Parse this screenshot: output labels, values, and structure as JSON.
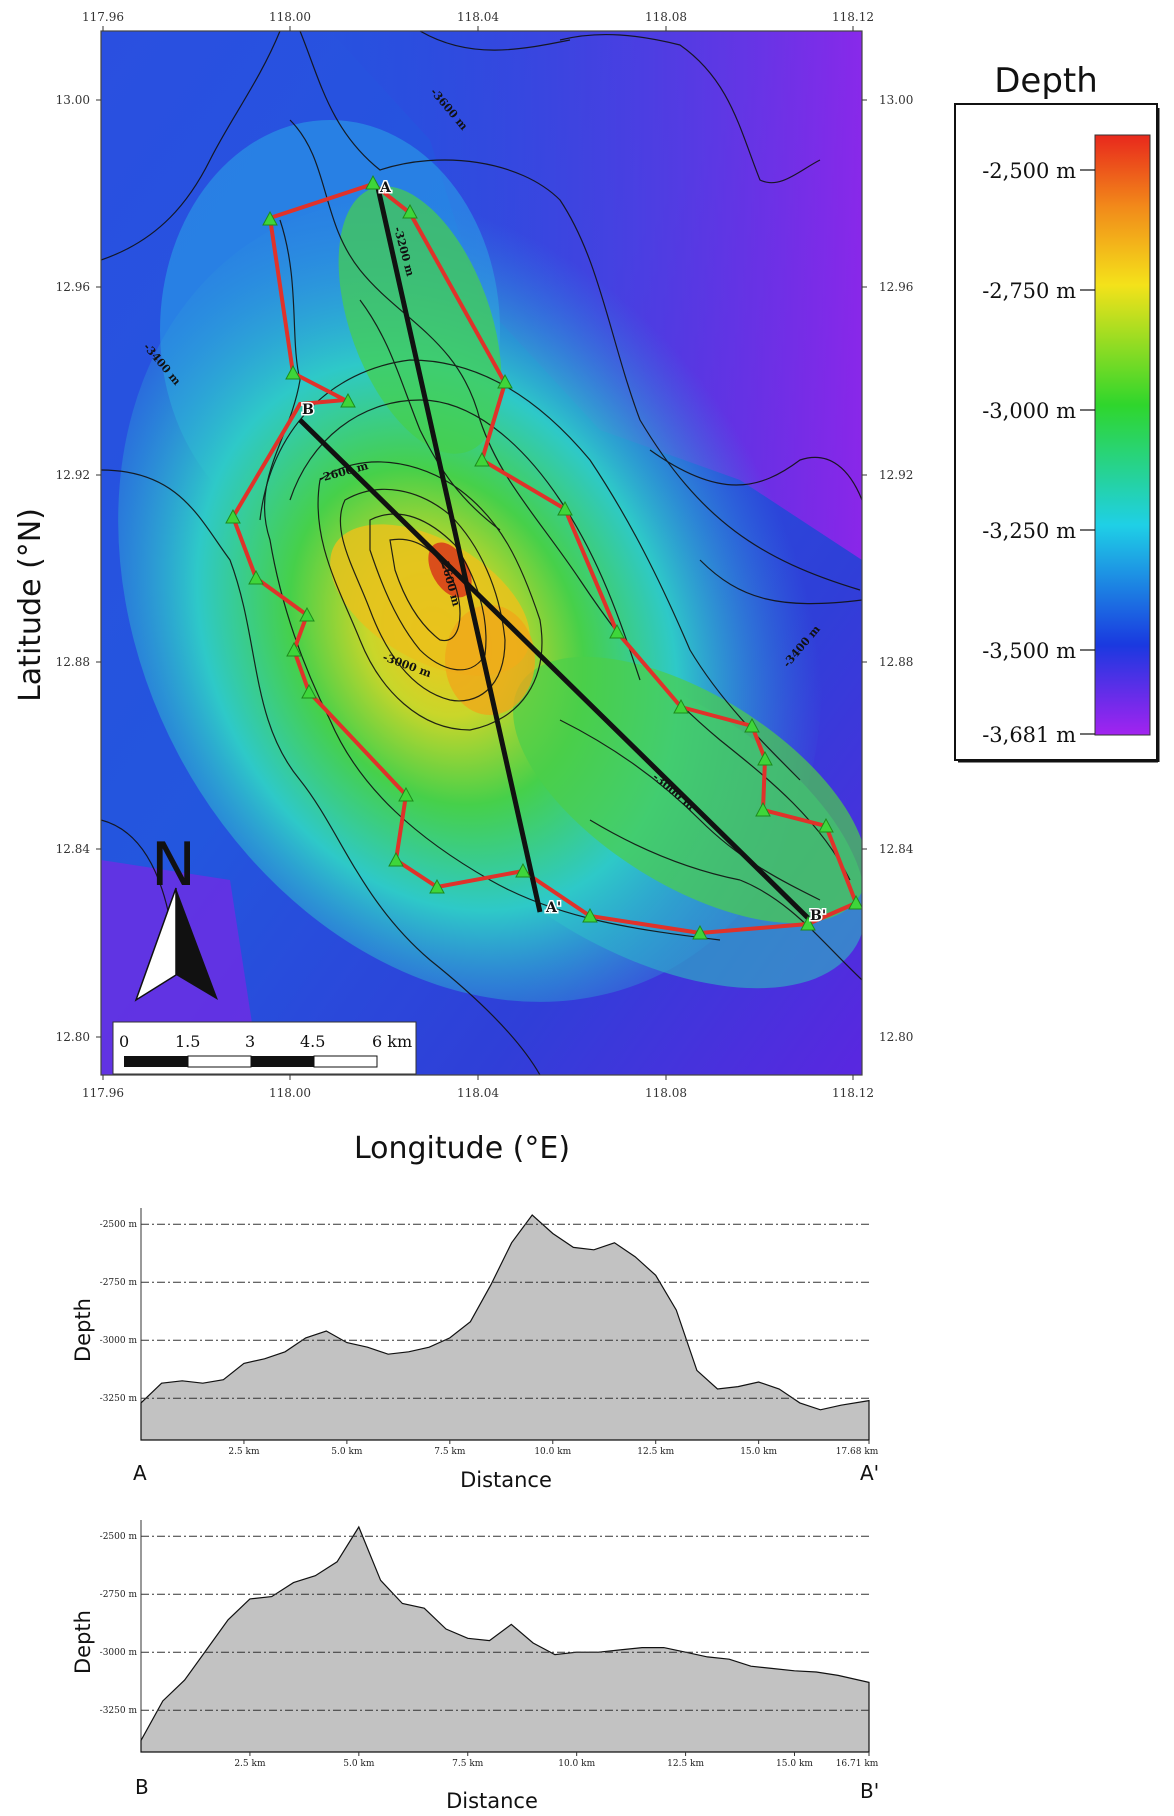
{
  "map": {
    "x_axis_label": "Longitude (°E)",
    "y_axis_label": "Latitude (°N)",
    "lon_ticks": [
      "117.96",
      "118.00",
      "118.04",
      "118.08",
      "118.12"
    ],
    "lat_ticks": [
      "13.00",
      "12.96",
      "12.92",
      "12.88",
      "12.84",
      "12.80"
    ],
    "contour_labels": [
      "-3600 m",
      "-3200 m",
      "-3400 m",
      "-2600 m",
      "-2600 m",
      "-3000 m",
      "-3000 m",
      "-3400 m"
    ],
    "point_labels": {
      "a": "A",
      "a_prime": "A'",
      "b": "B",
      "b_prime": "B'"
    },
    "north_arrow_label": "N",
    "scale_bar": {
      "labels": [
        "0",
        "1.5",
        "3",
        "4.5",
        "6 km"
      ]
    }
  },
  "legend": {
    "title": "Depth",
    "labels": [
      "-2,500 m",
      "-2,750 m",
      "-3,000 m",
      "-3,250 m",
      "-3,500 m",
      "-3,681 m"
    ],
    "colors": [
      "#e8281c",
      "#f4e21a",
      "#2fd62c",
      "#1fd0e6",
      "#1a39e0",
      "#a323f0"
    ]
  },
  "profiles": [
    {
      "ylabel": "Depth",
      "xlabel": "Distance",
      "y_ticks": [
        "-2500 m",
        "-2750 m",
        "-3000 m",
        "-3250 m"
      ],
      "x_ticks": [
        "2.5 km",
        "5.0 km",
        "7.5 km",
        "10.0 km",
        "12.5 km",
        "15.0 km",
        "17.68 km"
      ],
      "start_label": "A",
      "end_label": "A'"
    },
    {
      "ylabel": "Depth",
      "xlabel": "Distance",
      "y_ticks": [
        "-2500 m",
        "-2750 m",
        "-3000 m",
        "-3250 m"
      ],
      "x_ticks": [
        "2.5 km",
        "5.0 km",
        "7.5 km",
        "10.0 km",
        "12.5 km",
        "15.0 km",
        "16.71 km"
      ],
      "start_label": "B",
      "end_label": "B'"
    }
  ],
  "chart_data": [
    {
      "type": "area",
      "title": "",
      "xlabel": "Distance",
      "ylabel": "Depth",
      "x_unit": "km",
      "y_unit": "m",
      "xlim": [
        0,
        17.68
      ],
      "ylim": [
        -3430,
        -2430
      ],
      "series": [
        {
          "x": [
            0,
            0.5,
            1.0,
            1.5,
            2.0,
            2.5,
            3.0,
            3.5,
            4.0,
            4.5,
            5.0,
            5.5,
            6.0,
            6.5,
            7.0,
            7.5,
            8.0,
            8.5,
            9.0,
            9.5,
            10.0,
            10.5,
            11.0,
            11.5,
            12.0,
            12.5,
            13.0,
            13.5,
            14.0,
            14.5,
            15.0,
            15.5,
            16.0,
            16.5,
            17.0,
            17.68
          ],
          "y": [
            -3270,
            -3185,
            -3175,
            -3185,
            -3170,
            -3100,
            -3080,
            -3050,
            -2990,
            -2960,
            -3010,
            -3030,
            -3060,
            -3050,
            -3030,
            -2990,
            -2920,
            -2760,
            -2580,
            -2460,
            -2540,
            -2600,
            -2610,
            -2580,
            -2640,
            -2720,
            -2870,
            -3130,
            -3210,
            -3200,
            -3180,
            -3210,
            -3270,
            -3300,
            -3280,
            -3260
          ]
        }
      ]
    },
    {
      "type": "area",
      "title": "",
      "xlabel": "Distance",
      "ylabel": "Depth",
      "x_unit": "km",
      "y_unit": "m",
      "xlim": [
        0,
        16.71
      ],
      "ylim": [
        -3430,
        -2430
      ],
      "series": [
        {
          "x": [
            0,
            0.5,
            1.0,
            1.5,
            2.0,
            2.5,
            3.0,
            3.5,
            4.0,
            4.5,
            5.0,
            5.5,
            6.0,
            6.5,
            7.0,
            7.5,
            8.0,
            8.5,
            9.0,
            9.5,
            10.0,
            10.5,
            11.0,
            11.5,
            12.0,
            12.5,
            13.0,
            13.5,
            14.0,
            14.5,
            15.0,
            15.5,
            16.0,
            16.71
          ],
          "y": [
            -3380,
            -3210,
            -3120,
            -2990,
            -2860,
            -2770,
            -2760,
            -2700,
            -2670,
            -2610,
            -2460,
            -2690,
            -2790,
            -2810,
            -2900,
            -2940,
            -2950,
            -2880,
            -2960,
            -3010,
            -3000,
            -3000,
            -2990,
            -2980,
            -2980,
            -3000,
            -3020,
            -3030,
            -3060,
            -3070,
            -3080,
            -3085,
            -3100,
            -3130
          ]
        }
      ]
    }
  ]
}
